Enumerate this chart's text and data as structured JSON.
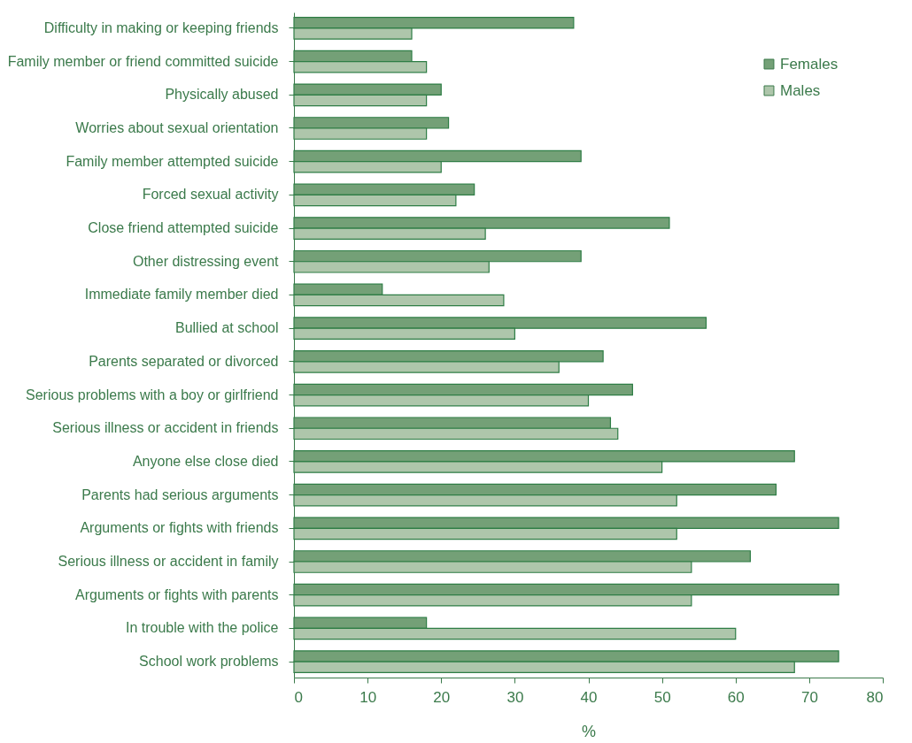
{
  "chart_data": {
    "type": "bar",
    "orientation": "horizontal",
    "xlabel": "%",
    "categories": [
      "Difficulty in making or keeping friends",
      "Family member or friend committed suicide",
      "Physically abused",
      "Worries about sexual orientation",
      "Family member attempted suicide",
      "Forced sexual activity",
      "Close friend attempted suicide",
      "Other distressing event",
      "Immediate family member died",
      "Bullied at school",
      "Parents separated or divorced",
      "Serious problems with a boy or girlfriend",
      "Serious illness or accident in friends",
      "Anyone else close died",
      "Parents had serious arguments",
      "Arguments or fights with friends",
      "Serious illness or accident in family",
      "Arguments or fights with parents",
      "In trouble with the police",
      "School work problems"
    ],
    "series": [
      {
        "name": "Females",
        "color": "#74a077",
        "values": [
          38,
          16,
          20,
          21,
          39,
          24.5,
          51,
          39,
          12,
          56,
          42,
          46,
          43,
          68,
          65.5,
          74,
          62,
          74,
          18,
          74
        ]
      },
      {
        "name": "Males",
        "color": "#aec6ab",
        "values": [
          16,
          18,
          18,
          18,
          20,
          22,
          26,
          26.5,
          28.5,
          30,
          36,
          40,
          44,
          50,
          52,
          52,
          54,
          54,
          60,
          68
        ]
      }
    ],
    "xlim": [
      0,
      80
    ],
    "xticks": [
      0,
      10,
      20,
      30,
      40,
      50,
      60,
      70,
      80
    ],
    "grid": false,
    "legend": "top right"
  }
}
